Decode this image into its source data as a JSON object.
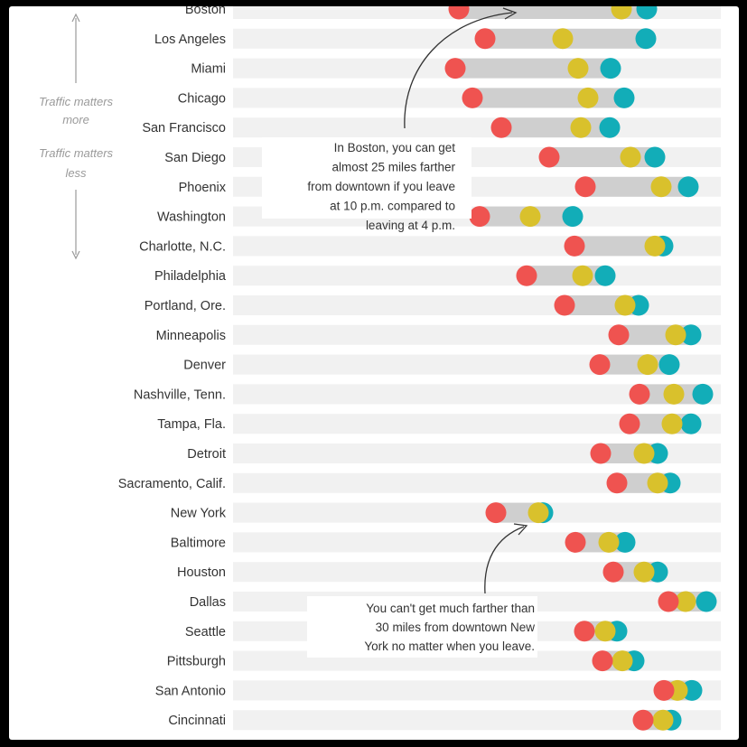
{
  "chart_data": {
    "type": "dot",
    "categories": [
      "Boston",
      "Los Angeles",
      "Miami",
      "Chicago",
      "San Francisco",
      "San Diego",
      "Phoenix",
      "Washington",
      "Charlotte, N.C.",
      "Philadelphia",
      "Portland, Ore.",
      "Minneapolis",
      "Denver",
      "Nashville, Tenn.",
      "Tampa, Fla.",
      "Detroit",
      "Sacramento, Calif.",
      "New York",
      "Baltimore",
      "Houston",
      "Dallas",
      "Seattle",
      "Pittsburgh",
      "San Antonio",
      "Cincinnati"
    ],
    "series": [
      {
        "color": "#ef5350",
        "values": [
          508,
          537,
          504,
          523,
          555,
          608,
          648,
          531,
          636,
          583,
          625,
          685,
          664,
          708,
          697,
          665,
          683,
          549,
          637,
          679,
          740,
          647,
          667,
          735,
          712
        ]
      },
      {
        "color": "#d9c12c",
        "values": [
          688,
          623,
          640,
          651,
          643,
          698,
          732,
          587,
          725,
          645,
          692,
          748,
          717,
          746,
          744,
          713,
          728,
          596,
          674,
          713,
          759,
          670,
          689,
          750,
          734
        ]
      },
      {
        "color": "#12adb8",
        "values": [
          716,
          715,
          676,
          691,
          675,
          725,
          762,
          634,
          734,
          670,
          707,
          765,
          741,
          778,
          765,
          728,
          742,
          601,
          692,
          728,
          782,
          683,
          702,
          766,
          743
        ]
      }
    ],
    "row_track_start": 258,
    "row_track_end": 798,
    "side_labels": {
      "top": [
        "Traffic matters",
        "more"
      ],
      "bottom": [
        "Traffic matters",
        "less"
      ]
    },
    "annotations": [
      {
        "lines": [
          "In Boston, you can get",
          "almost 25 miles farther",
          "from downtown if you leave",
          "at 10 p.m. compared to",
          "leaving at 4 p.m."
        ]
      },
      {
        "lines": [
          "You can't get much farther than",
          "30 miles from downtown New",
          "York no matter when you leave."
        ]
      }
    ]
  }
}
